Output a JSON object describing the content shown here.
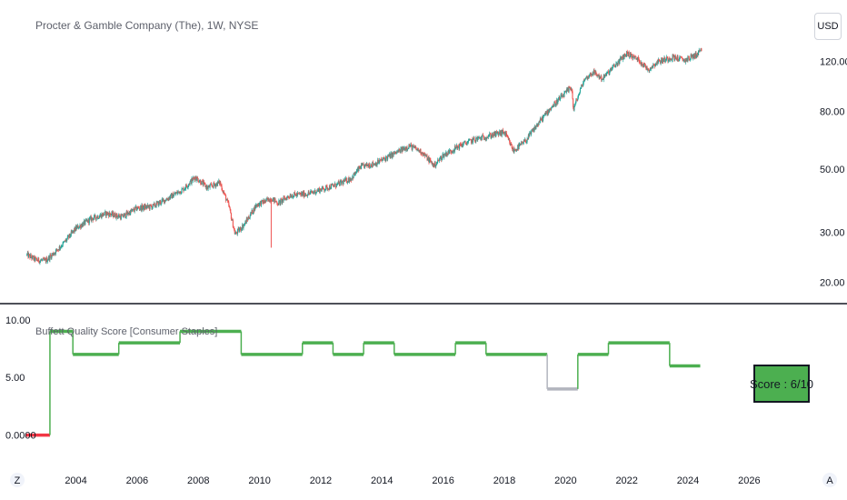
{
  "header": {
    "title": "Procter & Gamble Company (The), 1W, NYSE",
    "currency_button": "USD"
  },
  "chart_data": [
    {
      "type": "candlestick",
      "title": "Procter & Gamble Company (The), 1W, NYSE",
      "y_scale": "log",
      "y_ticks": [
        "120.00",
        "80.00",
        "50.00",
        "30.00",
        "20.00"
      ],
      "y_tick_values": [
        120,
        80,
        50,
        30,
        20
      ],
      "ylim": [
        18,
        170
      ],
      "xlim": [
        2002.35,
        2027.8
      ],
      "colors": {
        "up": "#26a69a",
        "down": "#ef5350"
      },
      "price_path": [
        [
          2002.4,
          25.0
        ],
        [
          2002.7,
          24.0
        ],
        [
          2003.0,
          23.8
        ],
        [
          2003.3,
          25.5
        ],
        [
          2003.6,
          27.5
        ],
        [
          2004.0,
          31.0
        ],
        [
          2004.5,
          33.5
        ],
        [
          2005.0,
          35.0
        ],
        [
          2005.5,
          34.0
        ],
        [
          2006.0,
          36.5
        ],
        [
          2006.5,
          37.0
        ],
        [
          2007.0,
          39.5
        ],
        [
          2007.5,
          42.5
        ],
        [
          2007.9,
          47.0
        ],
        [
          2008.3,
          43.0
        ],
        [
          2008.7,
          45.0
        ],
        [
          2009.0,
          37.0
        ],
        [
          2009.2,
          29.5
        ],
        [
          2009.5,
          32.0
        ],
        [
          2009.9,
          37.5
        ],
        [
          2010.4,
          39.5
        ],
        [
          2010.6,
          38.0
        ],
        [
          2011.0,
          40.5
        ],
        [
          2011.6,
          41.0
        ],
        [
          2012.0,
          42.5
        ],
        [
          2012.5,
          44.0
        ],
        [
          2013.0,
          46.5
        ],
        [
          2013.3,
          51.0
        ],
        [
          2013.8,
          52.5
        ],
        [
          2014.3,
          56.0
        ],
        [
          2014.9,
          60.5
        ],
        [
          2015.3,
          57.5
        ],
        [
          2015.7,
          51.5
        ],
        [
          2016.0,
          56.0
        ],
        [
          2016.6,
          61.0
        ],
        [
          2017.0,
          63.5
        ],
        [
          2017.6,
          66.0
        ],
        [
          2018.0,
          67.5
        ],
        [
          2018.3,
          58.0
        ],
        [
          2018.7,
          63.0
        ],
        [
          2019.0,
          70.0
        ],
        [
          2019.5,
          82.0
        ],
        [
          2019.9,
          90.5
        ],
        [
          2020.2,
          97.5
        ],
        [
          2020.25,
          81.0
        ],
        [
          2020.6,
          103.0
        ],
        [
          2020.9,
          110.0
        ],
        [
          2021.2,
          104.0
        ],
        [
          2021.6,
          115.5
        ],
        [
          2022.0,
          128.0
        ],
        [
          2022.4,
          121.0
        ],
        [
          2022.7,
          112.0
        ],
        [
          2023.0,
          119.5
        ],
        [
          2023.5,
          124.0
        ],
        [
          2023.9,
          121.0
        ],
        [
          2024.3,
          127.0
        ],
        [
          2024.45,
          133.0
        ]
      ],
      "spike": {
        "x": 2010.38,
        "low": 26.5
      }
    },
    {
      "type": "line",
      "title": "Buffett Quality Score [Consumer Staples]",
      "y_ticks": [
        "10.00",
        "5.00",
        "0.0000"
      ],
      "y_tick_values": [
        10,
        5,
        0
      ],
      "ylim": [
        -0.9,
        10.3
      ],
      "x_ticks": [
        "2004",
        "2006",
        "2008",
        "2010",
        "2012",
        "2014",
        "2016",
        "2018",
        "2020",
        "2022",
        "2024",
        "2026"
      ],
      "x_tick_values": [
        2004,
        2006,
        2008,
        2010,
        2012,
        2014,
        2016,
        2018,
        2020,
        2022,
        2024,
        2026
      ],
      "colors": {
        "good": "#4caf50",
        "neutral": "#b2b5be",
        "bad": "#f23645"
      },
      "segments": [
        {
          "x0": 2002.35,
          "x1": 2003.15,
          "value": 0,
          "color": "#f23645"
        },
        {
          "x0": 2003.15,
          "x1": 2003.9,
          "value": 9,
          "color": "#4caf50"
        },
        {
          "x0": 2003.9,
          "x1": 2005.4,
          "value": 7,
          "color": "#4caf50"
        },
        {
          "x0": 2005.4,
          "x1": 2007.4,
          "value": 8,
          "color": "#4caf50"
        },
        {
          "x0": 2007.4,
          "x1": 2009.4,
          "value": 9,
          "color": "#4caf50"
        },
        {
          "x0": 2009.4,
          "x1": 2011.4,
          "value": 7,
          "color": "#4caf50"
        },
        {
          "x0": 2011.4,
          "x1": 2012.4,
          "value": 8,
          "color": "#4caf50"
        },
        {
          "x0": 2012.4,
          "x1": 2013.4,
          "value": 7,
          "color": "#4caf50"
        },
        {
          "x0": 2013.4,
          "x1": 2014.4,
          "value": 8,
          "color": "#4caf50"
        },
        {
          "x0": 2014.4,
          "x1": 2016.4,
          "value": 7,
          "color": "#4caf50"
        },
        {
          "x0": 2016.4,
          "x1": 2017.4,
          "value": 8,
          "color": "#4caf50"
        },
        {
          "x0": 2017.4,
          "x1": 2019.4,
          "value": 7,
          "color": "#4caf50"
        },
        {
          "x0": 2019.4,
          "x1": 2020.4,
          "value": 4,
          "color": "#b2b5be"
        },
        {
          "x0": 2020.4,
          "x1": 2021.4,
          "value": 7,
          "color": "#4caf50"
        },
        {
          "x0": 2021.4,
          "x1": 2023.4,
          "value": 8,
          "color": "#4caf50"
        },
        {
          "x0": 2023.4,
          "x1": 2024.4,
          "value": 6,
          "color": "#4caf50"
        }
      ],
      "score_label": "Score :  6/10",
      "score_box_color": "#4caf50"
    }
  ],
  "footer": {
    "left_button": "Z",
    "right_button": "A"
  }
}
